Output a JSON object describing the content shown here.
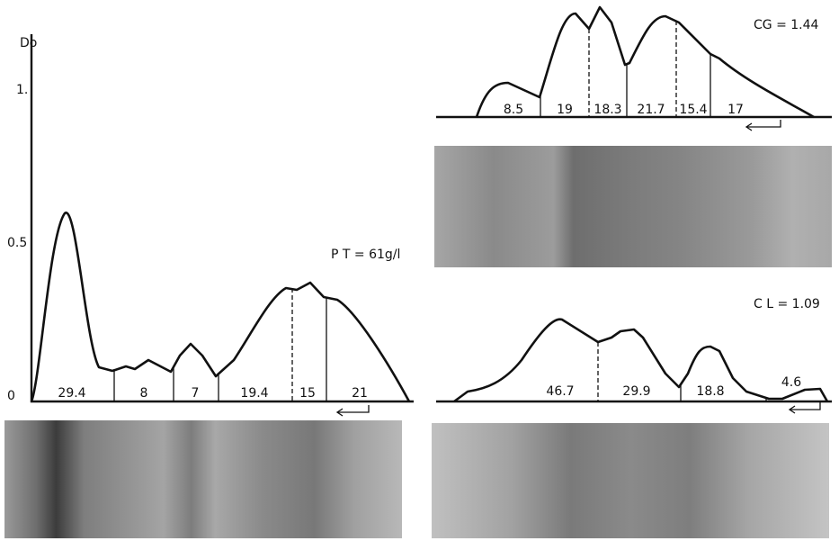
{
  "panels": {
    "pt": {
      "label": "P T = 61g/l",
      "axis_label": "Do",
      "ticks": [
        "0",
        "0.5",
        "1."
      ],
      "segments": [
        "29.4",
        "8",
        "7",
        "19.4",
        "15",
        "21"
      ]
    },
    "cg": {
      "label": "CG = 1.44",
      "segments": [
        "8.5",
        "19",
        "18.3",
        "21.7",
        "15.4",
        "17"
      ]
    },
    "cl": {
      "label": "C L = 1.09",
      "segments": [
        "46.7",
        "29.9",
        "18.8",
        "4.6"
      ]
    }
  }
}
